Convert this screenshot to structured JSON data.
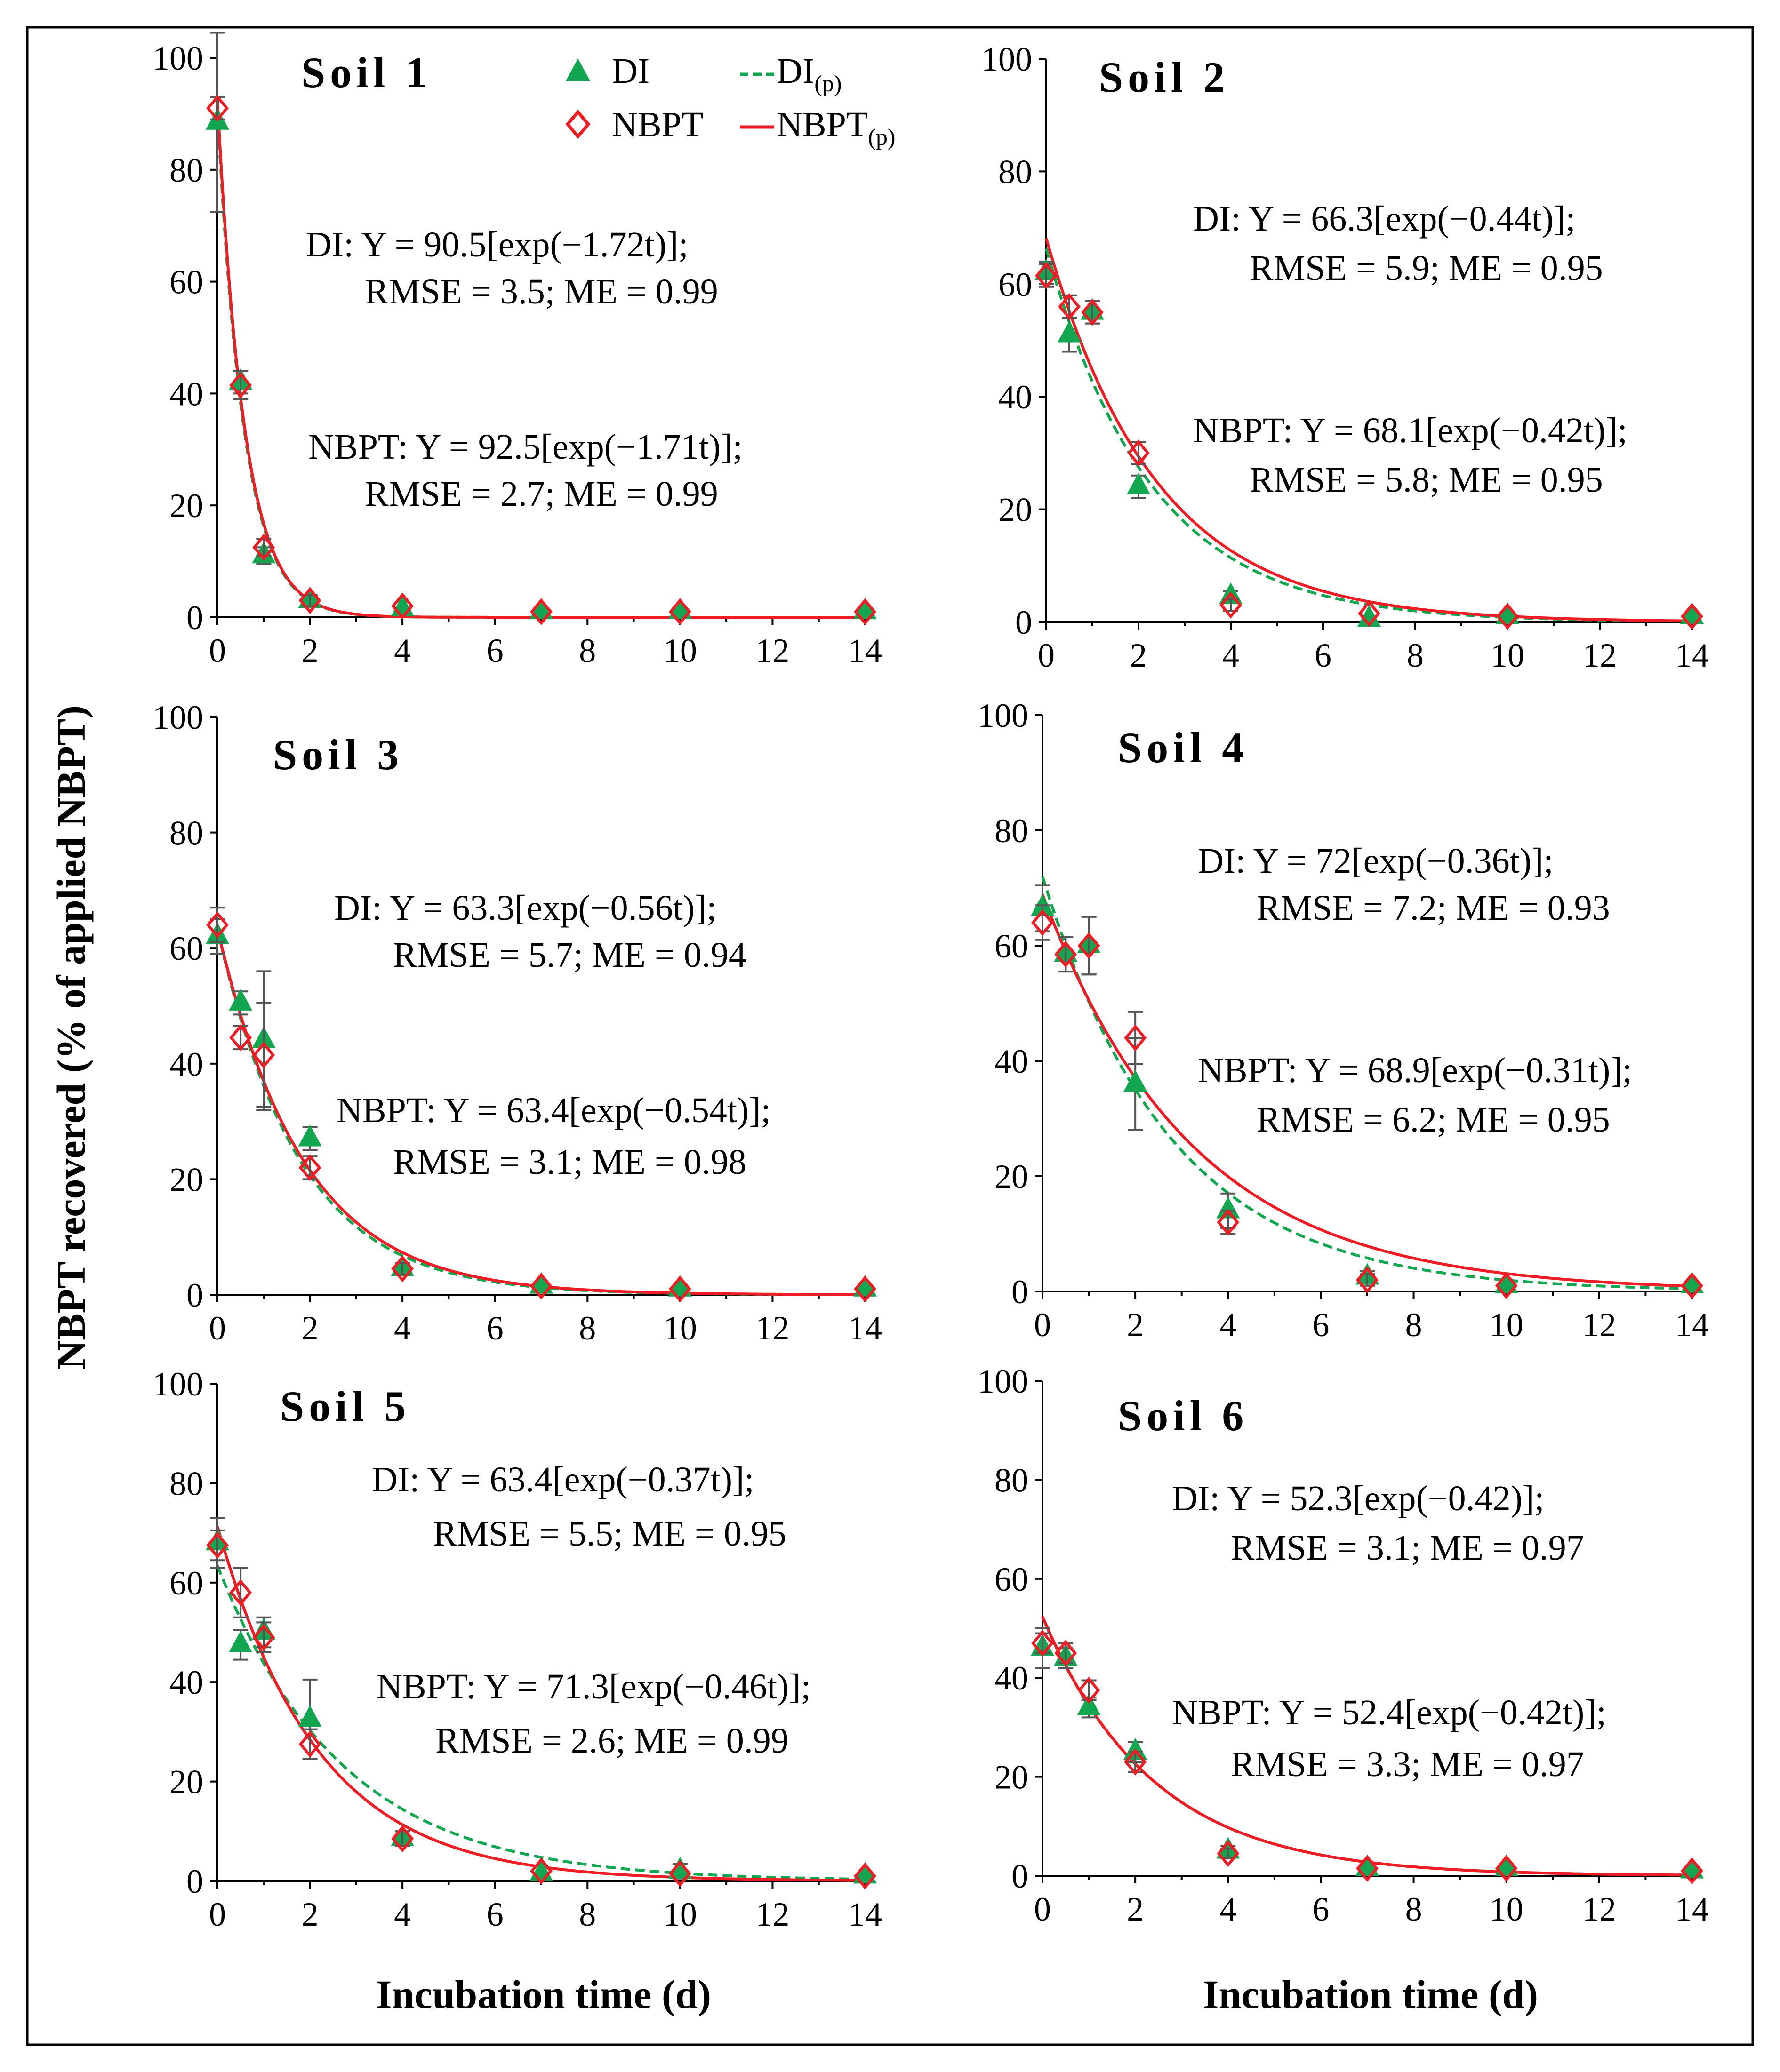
{
  "figure": {
    "ylabel": "NBPT recovered (% of applied NBPT)",
    "xlabel": "Incubation time (d)"
  },
  "legend": {
    "di": "DI",
    "nbpt": "NBPT",
    "di_p": "DI",
    "nbpt_p": "NBPT",
    "pred_sub": "(p)"
  },
  "colors": {
    "di": "#12a650",
    "nbpt": "#ee1c24",
    "errorbar": "#555555",
    "axis": "#000000"
  },
  "axes": {
    "xticks": [
      "0",
      "2",
      "4",
      "6",
      "8",
      "10",
      "12",
      "14"
    ],
    "yticks": [
      "0",
      "20",
      "40",
      "60",
      "80",
      "100"
    ]
  },
  "chart_data": [
    {
      "type": "scatter",
      "title": "Soil 1",
      "xlabel": "Incubation time (d)",
      "ylabel": "NBPT recovered (% of applied NBPT)",
      "xlim": [
        0,
        14
      ],
      "ylim": [
        0,
        100
      ],
      "x": [
        0,
        0.5,
        1,
        2,
        4,
        7,
        10,
        14
      ],
      "series": [
        {
          "name": "DI",
          "values": [
            88.5,
            42,
            11,
            3,
            1.5,
            1,
            1,
            1
          ],
          "errors": [
            16,
            2,
            1.5,
            1,
            0.5,
            0.5,
            0.5,
            0.5
          ]
        },
        {
          "name": "NBPT",
          "values": [
            91,
            41.5,
            12.5,
            3,
            2,
            1,
            1,
            1
          ],
          "errors": [
            2,
            2.5,
            1.5,
            1,
            0.5,
            0.5,
            0.5,
            0.5
          ]
        }
      ],
      "fits": [
        {
          "name": "DI(p)",
          "a": 90.5,
          "k": 1.72
        },
        {
          "name": "NBPT(p)",
          "a": 92.5,
          "k": 1.71
        }
      ],
      "equations": {
        "di_line1": "DI: Y = 90.5[exp(−1.72t)];",
        "di_line2": "RMSE = 3.5; ME = 0.99",
        "nbpt_line1": "NBPT: Y = 92.5[exp(−1.71t)];",
        "nbpt_line2": "RMSE = 2.7; ME = 0.99"
      }
    },
    {
      "type": "scatter",
      "title": "Soil 2",
      "xlabel": "Incubation time (d)",
      "ylabel": "NBPT recovered (% of applied NBPT)",
      "xlim": [
        0,
        14
      ],
      "ylim": [
        0,
        100
      ],
      "x": [
        0,
        0.5,
        1,
        2,
        4,
        7,
        10,
        14
      ],
      "series": [
        {
          "name": "DI",
          "values": [
            62,
            51,
            55,
            24,
            4.5,
            0.5,
            1,
            1
          ],
          "errors": [
            2,
            3,
            2,
            2,
            1,
            0.5,
            0.5,
            0.5
          ]
        },
        {
          "name": "NBPT",
          "values": [
            61.5,
            56,
            55,
            30,
            3,
            1.5,
            1,
            1
          ],
          "errors": [
            2,
            2,
            2,
            2,
            1,
            0.5,
            0.5,
            0.5
          ]
        }
      ],
      "fits": [
        {
          "name": "DI(p)",
          "a": 66.3,
          "k": 0.44
        },
        {
          "name": "NBPT(p)",
          "a": 68.1,
          "k": 0.42
        }
      ],
      "equations": {
        "di_line1": "DI: Y = 66.3[exp(−0.44t)];",
        "di_line2": "RMSE = 5.9; ME = 0.95",
        "nbpt_line1": "NBPT: Y = 68.1[exp(−0.42t)];",
        "nbpt_line2": "RMSE = 5.8; ME = 0.95"
      }
    },
    {
      "type": "scatter",
      "title": "Soil 3",
      "xlabel": "Incubation time (d)",
      "ylabel": "NBPT recovered (% of applied NBPT)",
      "xlim": [
        0,
        14
      ],
      "ylim": [
        0,
        100
      ],
      "x": [
        0,
        0.5,
        1,
        2,
        4,
        7,
        10,
        14
      ],
      "series": [
        {
          "name": "DI",
          "values": [
            62,
            50.5,
            44,
            27,
            4.5,
            1.5,
            1,
            1
          ],
          "errors": [
            3,
            2,
            12,
            2,
            1,
            0.5,
            0.5,
            0.5
          ]
        },
        {
          "name": "NBPT",
          "values": [
            64,
            44.5,
            41.5,
            22,
            4.5,
            1.5,
            1,
            1
          ],
          "errors": [
            3,
            2,
            9,
            2,
            1,
            0.5,
            0.5,
            0.5
          ]
        }
      ],
      "fits": [
        {
          "name": "DI(p)",
          "a": 63.3,
          "k": 0.56
        },
        {
          "name": "NBPT(p)",
          "a": 63.4,
          "k": 0.54
        }
      ],
      "equations": {
        "di_line1": "DI: Y = 63.3[exp(−0.56t)];",
        "di_line2": "RMSE = 5.7; ME = 0.94",
        "nbpt_line1": "NBPT: Y = 63.4[exp(−0.54t)];",
        "nbpt_line2": "RMSE = 3.1; ME = 0.98"
      }
    },
    {
      "type": "scatter",
      "title": "Soil 4",
      "xlabel": "Incubation time (d)",
      "ylabel": "NBPT recovered (% of applied NBPT)",
      "xlim": [
        0,
        14
      ],
      "ylim": [
        0,
        100
      ],
      "x": [
        0,
        0.5,
        1,
        2,
        4,
        7,
        10,
        14
      ],
      "series": [
        {
          "name": "DI",
          "values": [
            66.5,
            58.5,
            60,
            36,
            14,
            2.5,
            1,
            1
          ],
          "errors": [
            4,
            3,
            5,
            8,
            3,
            1,
            0.5,
            0.5
          ]
        },
        {
          "name": "NBPT",
          "values": [
            64,
            58.5,
            60,
            44,
            12,
            2,
            1,
            1
          ],
          "errors": [
            3,
            3,
            5,
            4.5,
            2,
            1,
            0.5,
            0.5
          ]
        }
      ],
      "fits": [
        {
          "name": "DI(p)",
          "a": 72,
          "k": 0.36
        },
        {
          "name": "NBPT(p)",
          "a": 68.9,
          "k": 0.31
        }
      ],
      "equations": {
        "di_line1": "DI: Y = 72[exp(−0.36t)];",
        "di_line2": "RMSE = 7.2; ME = 0.93",
        "nbpt_line1": "NBPT: Y = 68.9[exp(−0.31t)];",
        "nbpt_line2": "RMSE = 6.2; ME = 0.95"
      }
    },
    {
      "type": "scatter",
      "title": "Soil 5",
      "xlabel": "Incubation time (d)",
      "ylabel": "NBPT recovered (% of applied NBPT)",
      "xlim": [
        0,
        14
      ],
      "ylim": [
        0,
        100
      ],
      "x": [
        0,
        0.5,
        1,
        2,
        4,
        7,
        10,
        14
      ],
      "series": [
        {
          "name": "DI",
          "values": [
            68,
            47.5,
            50,
            32.5,
            8.5,
            1.5,
            2,
            1
          ],
          "errors": [
            5,
            3,
            3,
            8,
            1.5,
            0.5,
            1.5,
            0.5
          ]
        },
        {
          "name": "NBPT",
          "values": [
            67.5,
            58,
            49,
            27.5,
            8.5,
            2,
            1.5,
            1
          ],
          "errors": [
            3,
            5,
            3,
            3,
            1.5,
            0.5,
            0.5,
            0.5
          ]
        }
      ],
      "fits": [
        {
          "name": "DI(p)",
          "a": 63.4,
          "k": 0.37
        },
        {
          "name": "NBPT(p)",
          "a": 71.3,
          "k": 0.46
        }
      ],
      "equations": {
        "di_line1": "DI: Y = 63.4[exp(−0.37t)];",
        "di_line2": "RMSE = 5.5; ME = 0.95",
        "nbpt_line1": "NBPT: Y = 71.3[exp(−0.46t)];",
        "nbpt_line2": "RMSE = 2.6; ME = 0.99"
      }
    },
    {
      "type": "scatter",
      "title": "Soil 6",
      "xlabel": "Incubation time (d)",
      "ylabel": "NBPT recovered (% of applied NBPT)",
      "xlim": [
        0,
        14
      ],
      "ylim": [
        0,
        100
      ],
      "x": [
        0,
        0.5,
        1,
        2,
        4,
        7,
        10,
        14
      ],
      "series": [
        {
          "name": "DI",
          "values": [
            46,
            44,
            34,
            25,
            5,
            1.5,
            1.5,
            1
          ],
          "errors": [
            4,
            2,
            2,
            2,
            1,
            0.5,
            0.5,
            0.5
          ]
        },
        {
          "name": "NBPT",
          "values": [
            47,
            45,
            37.5,
            23,
            4.5,
            1.5,
            1.5,
            1
          ],
          "errors": [
            2,
            2,
            2,
            2,
            1,
            0.5,
            0.5,
            0.5
          ]
        }
      ],
      "fits": [
        {
          "name": "DI(p)",
          "a": 52.3,
          "k": 0.42
        },
        {
          "name": "NBPT(p)",
          "a": 52.4,
          "k": 0.42
        }
      ],
      "equations": {
        "di_line1": "DI: Y = 52.3[exp(−0.42)];",
        "di_line2": "RMSE = 3.1; ME = 0.97",
        "nbpt_line1": "NBPT: Y = 52.4[exp(−0.42t)];",
        "nbpt_line2": "RMSE = 3.3; ME = 0.97"
      }
    }
  ]
}
